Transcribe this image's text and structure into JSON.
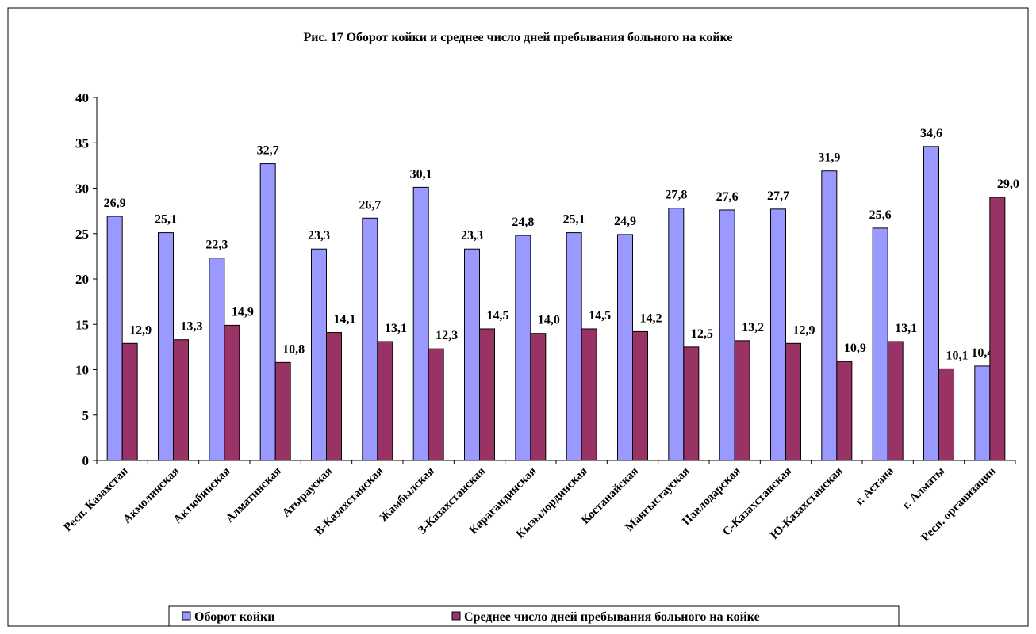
{
  "chart_data": {
    "type": "bar",
    "title": "Рис. 17   Оборот койки и среднее число дней пребывания больного на койке",
    "categories": [
      "Респ. Казахстан",
      "Акмолинская",
      "Актюбинская",
      "Алматинская",
      "Атырауская",
      "В-Казахстанская",
      "Жамбылская",
      "З-Казахстанская",
      "Карагандинская",
      "Кызылординская",
      "Костанайская",
      "Мангыстауская",
      "Павлодарская",
      "С-Казахстанская",
      "Ю-Казахстанская",
      "г. Астана",
      "г. Алматы",
      "Респ. организации"
    ],
    "series": [
      {
        "name": "Оборот койки",
        "color": "#9999ff",
        "values": [
          26.9,
          25.1,
          22.3,
          32.7,
          23.3,
          26.7,
          30.1,
          23.3,
          24.8,
          25.1,
          24.9,
          27.8,
          27.6,
          27.7,
          31.9,
          25.6,
          34.6,
          10.4
        ],
        "value_labels": [
          "26,9",
          "25,1",
          "22,3",
          "32,7",
          "23,3",
          "26,7",
          "30,1",
          "23,3",
          "24,8",
          "25,1",
          "24,9",
          "27,8",
          "27,6",
          "27,7",
          "31,9",
          "25,6",
          "34,6",
          "10,4"
        ]
      },
      {
        "name": "Среднее число дней пребывания больного на койке",
        "color": "#993366",
        "values": [
          12.9,
          13.3,
          14.9,
          10.8,
          14.1,
          13.1,
          12.3,
          14.5,
          14.0,
          14.5,
          14.2,
          12.5,
          13.2,
          12.9,
          10.9,
          13.1,
          10.1,
          29.0
        ],
        "value_labels": [
          "12,9",
          "13,3",
          "14,9",
          "10,8",
          "14,1",
          "13,1",
          "12,3",
          "14,5",
          "14,0",
          "14,5",
          "14,2",
          "12,5",
          "13,2",
          "12,9",
          "10,9",
          "13,1",
          "10,1",
          "29,0"
        ]
      }
    ],
    "ylim": [
      0,
      40
    ],
    "yticks": [
      0,
      5,
      10,
      15,
      20,
      25,
      30,
      35,
      40
    ],
    "legend": "bottom"
  }
}
